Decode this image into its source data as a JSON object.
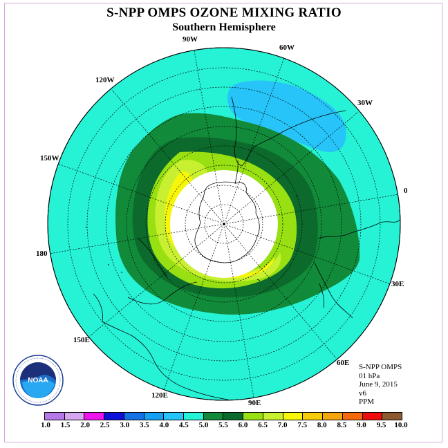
{
  "title": "S-NPP OMPS OZONE MIXING RATIO",
  "subtitle": "Southern Hemisphere",
  "longitude_labels": {
    "lon_90w": "90W",
    "lon_60w": "60W",
    "lon_30w": "30W",
    "lon_0": "0",
    "lon_30e": "30E",
    "lon_60e": "60E",
    "lon_90e": "90E",
    "lon_120e": "120E",
    "lon_150e": "150E",
    "lon_180": "180",
    "lon_150w": "150W",
    "lon_120w": "120W"
  },
  "info": {
    "instrument": "S-NPP OMPS",
    "pressure_level": "01 hPa",
    "date": "June 9, 2015",
    "version": "v6",
    "units": "PPM"
  },
  "logo": {
    "text": "NOAA",
    "ring_text": "NATIONAL OCEANIC AND ATMOSPHERIC ADMINISTRATION",
    "ring_text_bottom": "U.S. DEPARTMENT OF COMMERCE",
    "icon": "noaa-logo-icon"
  },
  "colorbar": {
    "tick_labels": [
      "1.0",
      "1.5",
      "2.0",
      "2.5",
      "3.0",
      "3.5",
      "4.0",
      "4.5",
      "5.0",
      "5.5",
      "6.0",
      "6.5",
      "7.0",
      "7.5",
      "8.0",
      "8.5",
      "9.0",
      "9.5",
      "10.0"
    ],
    "colors": [
      "#b57ae8",
      "#d7a6f0",
      "#ee14ee",
      "#1010d8",
      "#1670e6",
      "#16a0f5",
      "#26c4f8",
      "#26f2d6",
      "#118a3a",
      "#0c6a2c",
      "#98e012",
      "#c8f030",
      "#f6f60a",
      "#f4cc0a",
      "#f4a60a",
      "#f26a0a",
      "#ee0c0c",
      "#8c5a32"
    ]
  },
  "map_colors": {
    "ocean_background": "#26f2d6",
    "low_region": "#26c4f8",
    "band_5_5": "#118a3a",
    "band_6_0": "#0c6a2c",
    "band_6_5": "#98e012",
    "band_7_0": "#c8f030",
    "band_7_5": "#f6f60a",
    "polar_night_fill": "#ffffff"
  }
}
